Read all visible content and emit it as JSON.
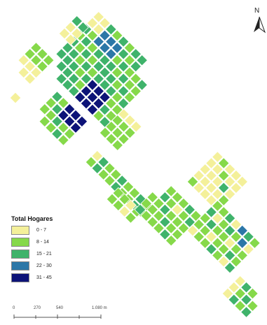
{
  "north_arrow": {
    "letter": "N",
    "icon": "north-arrow-icon"
  },
  "legend": {
    "title": "Total Hogares",
    "classes": [
      {
        "label": "0 - 7",
        "color": "#f4f09a"
      },
      {
        "label": "8 - 14",
        "color": "#86d94a"
      },
      {
        "label": "15 - 21",
        "color": "#3fb36b"
      },
      {
        "label": "22 - 30",
        "color": "#2c77a7"
      },
      {
        "label": "31 - 45",
        "color": "#0d1378"
      }
    ]
  },
  "scalebar": {
    "labels": [
      "0",
      "270",
      "540",
      "1.080 m"
    ]
  }
}
